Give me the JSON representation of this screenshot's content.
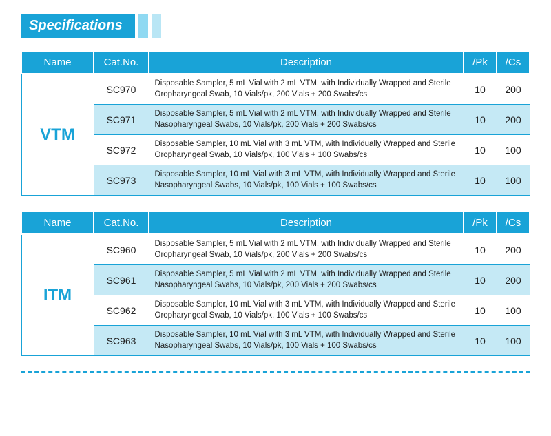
{
  "title": "Specifications",
  "headers": {
    "name": "Name",
    "cat": "Cat.No.",
    "desc": "Description",
    "pk": "/Pk",
    "cs": "/Cs"
  },
  "tables": [
    {
      "group": "VTM",
      "rows": [
        {
          "cat": "SC970",
          "desc": "Disposable Sampler, 5 mL Vial with 2 mL VTM, with Individually Wrapped and Sterile Oropharyngeal Swab, 10 Vials/pk, 200 Vials + 200 Swabs/cs",
          "pk": "10",
          "cs": "200"
        },
        {
          "cat": "SC971",
          "desc": "Disposable Sampler, 5 mL Vial with 2 mL VTM, with Individually Wrapped and Sterile Nasopharyngeal Swabs, 10 Vials/pk, 200 Vials + 200 Swabs/cs",
          "pk": "10",
          "cs": "200"
        },
        {
          "cat": "SC972",
          "desc": "Disposable Sampler, 10 mL Vial with 3 mL VTM, with Individually Wrapped and Sterile Oropharyngeal Swab, 10 Vials/pk, 100 Vials + 100 Swabs/cs",
          "pk": "10",
          "cs": "100"
        },
        {
          "cat": "SC973",
          "desc": "Disposable Sampler, 10 mL Vial with 3 mL VTM, with Individually Wrapped and Sterile Nasopharyngeal Swabs, 10 Vials/pk, 100 Vials + 100 Swabs/cs",
          "pk": "10",
          "cs": "100"
        }
      ]
    },
    {
      "group": "ITM",
      "rows": [
        {
          "cat": "SC960",
          "desc": "Disposable Sampler, 5 mL Vial with 2 mL VTM, with Individually Wrapped and Sterile Oropharyngeal Swab, 10 Vials/pk, 200 Vials + 200 Swabs/cs",
          "pk": "10",
          "cs": "200"
        },
        {
          "cat": "SC961",
          "desc": "Disposable Sampler, 5 mL Vial with 2 mL VTM, with Individually Wrapped and Sterile Nasopharyngeal Swabs, 10 Vials/pk, 200 Vials + 200 Swabs/cs",
          "pk": "10",
          "cs": "200"
        },
        {
          "cat": "SC962",
          "desc": "Disposable Sampler, 10 mL Vial with 3 mL VTM, with Individually Wrapped and Sterile Oropharyngeal Swab, 10 Vials/pk, 100 Vials + 100 Swabs/cs",
          "pk": "10",
          "cs": "100"
        },
        {
          "cat": "SC963",
          "desc": "Disposable Sampler, 10 mL Vial with 3 mL VTM, with Individually Wrapped and Sterile Nasopharyngeal Swabs, 10 Vials/pk, 100 Vials + 100 Swabs/cs",
          "pk": "10",
          "cs": "100"
        }
      ]
    }
  ]
}
